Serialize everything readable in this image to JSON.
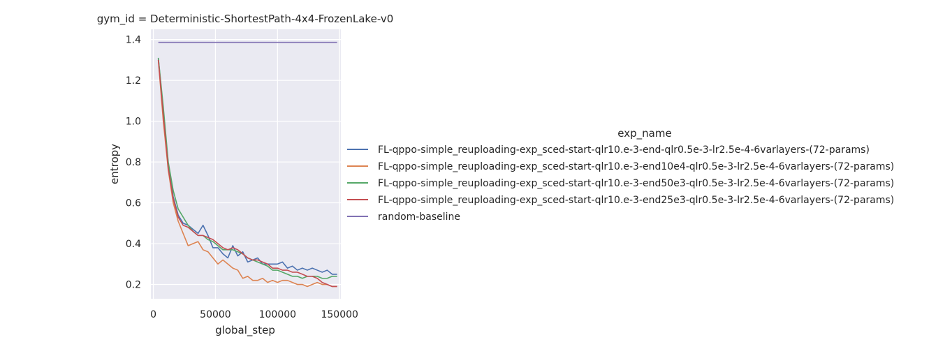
{
  "chart_data": {
    "type": "line",
    "title": "gym_id = Deterministic-ShortestPath-4x4-FrozenLake-v0",
    "xlabel": "global_step",
    "ylabel": "entropy",
    "xlim": [
      -2000,
      151000
    ],
    "ylim": [
      0.13,
      1.45
    ],
    "xticks": [
      0,
      50000,
      100000,
      150000
    ],
    "yticks": [
      0.2,
      0.4,
      0.6,
      0.8,
      1.0,
      1.2,
      1.4
    ],
    "xtick_labels": [
      "0",
      "50000",
      "100000",
      "150000"
    ],
    "ytick_labels": [
      "0.2",
      "0.4",
      "0.6",
      "0.8",
      "1.0",
      "1.2",
      "1.4"
    ],
    "grid": true,
    "legend_title": "exp_name",
    "legend_position": "right",
    "series": [
      {
        "name": "FL-qppo-simple_reuploading-exp_sced-start-qlr10.e-3-end-qlr0.5e-3-lr2.5e-4-6varlayers-(72-params)",
        "color": "#4c72b0",
        "x": [
          4000,
          8000,
          12000,
          16000,
          20000,
          24000,
          28000,
          32000,
          36000,
          40000,
          44000,
          48000,
          52000,
          56000,
          60000,
          64000,
          68000,
          72000,
          76000,
          80000,
          84000,
          88000,
          92000,
          96000,
          100000,
          104000,
          108000,
          112000,
          116000,
          120000,
          124000,
          128000,
          132000,
          136000,
          140000,
          144000,
          148000
        ],
        "values": [
          1.31,
          1.05,
          0.79,
          0.63,
          0.54,
          0.5,
          0.49,
          0.47,
          0.45,
          0.49,
          0.44,
          0.38,
          0.38,
          0.35,
          0.33,
          0.39,
          0.34,
          0.36,
          0.31,
          0.32,
          0.33,
          0.3,
          0.3,
          0.3,
          0.3,
          0.31,
          0.28,
          0.29,
          0.27,
          0.28,
          0.27,
          0.28,
          0.27,
          0.26,
          0.27,
          0.25,
          0.25
        ]
      },
      {
        "name": "FL-qppo-simple_reuploading-exp_sced-start-qlr10.e-3-end10e4-qlr0.5e-3-lr2.5e-4-6varlayers-(72-params)",
        "color": "#dd8452",
        "x": [
          4000,
          8000,
          12000,
          16000,
          20000,
          24000,
          28000,
          32000,
          36000,
          40000,
          44000,
          48000,
          52000,
          56000,
          60000,
          64000,
          68000,
          72000,
          76000,
          80000,
          84000,
          88000,
          92000,
          96000,
          100000,
          104000,
          108000,
          112000,
          116000,
          120000,
          124000,
          128000,
          132000,
          136000,
          140000,
          144000,
          148000
        ],
        "values": [
          1.3,
          1.0,
          0.76,
          0.6,
          0.51,
          0.45,
          0.39,
          0.4,
          0.41,
          0.37,
          0.36,
          0.33,
          0.3,
          0.32,
          0.3,
          0.28,
          0.27,
          0.23,
          0.24,
          0.22,
          0.22,
          0.23,
          0.21,
          0.22,
          0.21,
          0.22,
          0.22,
          0.21,
          0.2,
          0.2,
          0.19,
          0.2,
          0.21,
          0.2,
          0.2,
          0.19,
          0.19
        ]
      },
      {
        "name": "FL-qppo-simple_reuploading-exp_sced-start-qlr10.e-3-end50e3-qlr0.5e-3-lr2.5e-4-6varlayers-(72-params)",
        "color": "#55a868",
        "x": [
          4000,
          8000,
          12000,
          16000,
          20000,
          24000,
          28000,
          32000,
          36000,
          40000,
          44000,
          48000,
          52000,
          56000,
          60000,
          64000,
          68000,
          72000,
          76000,
          80000,
          84000,
          88000,
          92000,
          96000,
          100000,
          104000,
          108000,
          112000,
          116000,
          120000,
          124000,
          128000,
          132000,
          136000,
          140000,
          144000,
          148000
        ],
        "values": [
          1.31,
          1.07,
          0.8,
          0.66,
          0.57,
          0.53,
          0.49,
          0.46,
          0.44,
          0.44,
          0.42,
          0.41,
          0.39,
          0.37,
          0.37,
          0.37,
          0.36,
          0.35,
          0.33,
          0.32,
          0.31,
          0.3,
          0.29,
          0.27,
          0.27,
          0.26,
          0.25,
          0.24,
          0.24,
          0.23,
          0.24,
          0.24,
          0.24,
          0.23,
          0.23,
          0.24,
          0.24
        ]
      },
      {
        "name": "FL-qppo-simple_reuploading-exp_sced-start-qlr10.e-3-end25e3-qlr0.5e-3-lr2.5e-4-6varlayers-(72-params)",
        "color": "#c44e52",
        "x": [
          4000,
          8000,
          12000,
          16000,
          20000,
          24000,
          28000,
          32000,
          36000,
          40000,
          44000,
          48000,
          52000,
          56000,
          60000,
          64000,
          68000,
          72000,
          76000,
          80000,
          84000,
          88000,
          92000,
          96000,
          100000,
          104000,
          108000,
          112000,
          116000,
          120000,
          124000,
          128000,
          132000,
          136000,
          140000,
          144000,
          148000
        ],
        "values": [
          1.3,
          1.03,
          0.77,
          0.62,
          0.53,
          0.49,
          0.48,
          0.46,
          0.44,
          0.44,
          0.43,
          0.42,
          0.4,
          0.38,
          0.37,
          0.38,
          0.37,
          0.35,
          0.33,
          0.32,
          0.32,
          0.31,
          0.3,
          0.28,
          0.28,
          0.27,
          0.27,
          0.26,
          0.26,
          0.25,
          0.24,
          0.24,
          0.23,
          0.21,
          0.2,
          0.19,
          0.19
        ]
      },
      {
        "name": "random-baseline",
        "color": "#8172b3",
        "x": [
          4000,
          148000
        ],
        "values": [
          1.386,
          1.386
        ]
      }
    ]
  }
}
